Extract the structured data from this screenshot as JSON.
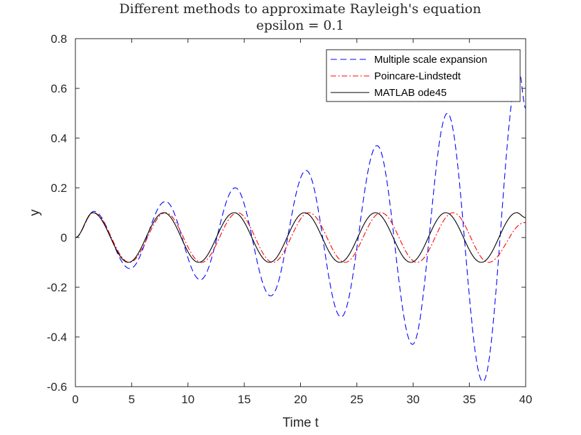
{
  "chart_data": {
    "type": "line",
    "title": "Different methods to approximate Rayleigh's equation",
    "subtitle": "epsilon = 0.1",
    "xlabel": "Time t",
    "ylabel": "y",
    "xlim": [
      0,
      40
    ],
    "ylim": [
      -0.6,
      0.8
    ],
    "xticks": [
      0,
      5,
      10,
      15,
      20,
      25,
      30,
      35,
      40
    ],
    "xtick_labels": [
      "0",
      "5",
      "10",
      "15",
      "20",
      "25",
      "30",
      "35",
      "40"
    ],
    "yticks": [
      -0.6,
      -0.4,
      -0.2,
      0,
      0.2,
      0.4,
      0.6,
      0.8
    ],
    "ytick_labels": [
      "-0.6",
      "-0.4",
      "-0.2",
      "0",
      "0.2",
      "0.4",
      "0.6",
      "0.8"
    ],
    "grid": false,
    "legend_position": "top-right",
    "series": [
      {
        "name": "Multiple scale expansion",
        "color": "#0000ff",
        "style": "dashed",
        "x": [
          0,
          1.65,
          4.85,
          8.0,
          11.1,
          14.2,
          17.35,
          20.5,
          23.6,
          26.8,
          29.95,
          33.05,
          36.2,
          39.4,
          40
        ],
        "y": [
          0,
          0.105,
          -0.125,
          0.145,
          -0.17,
          0.2,
          -0.235,
          0.27,
          -0.32,
          0.37,
          -0.43,
          0.5,
          -0.58,
          0.67,
          0.52
        ]
      },
      {
        "name": "Poincare-Lindstedt",
        "color": "#ff0000",
        "style": "dashdot",
        "x": [
          0,
          1.6,
          4.8,
          8.0,
          11.2,
          14.4,
          17.55,
          20.75,
          23.95,
          27.15,
          30.35,
          33.55,
          36.7,
          39.9,
          40
        ],
        "y": [
          0,
          0.1,
          -0.1,
          0.1,
          -0.1,
          0.1,
          -0.1,
          0.1,
          -0.1,
          0.1,
          -0.1,
          0.1,
          -0.1,
          0.06,
          0.06
        ]
      },
      {
        "name": "MATLAB ode45",
        "color": "#000000",
        "style": "solid",
        "x": [
          0,
          1.55,
          4.7,
          7.85,
          10.95,
          14.1,
          17.25,
          20.35,
          23.5,
          26.65,
          29.8,
          32.9,
          36.05,
          39.2,
          40
        ],
        "y": [
          0,
          0.1,
          -0.1,
          0.1,
          -0.1,
          0.1,
          -0.1,
          0.1,
          -0.1,
          0.1,
          -0.1,
          0.1,
          -0.1,
          0.1,
          0.08
        ]
      }
    ]
  }
}
